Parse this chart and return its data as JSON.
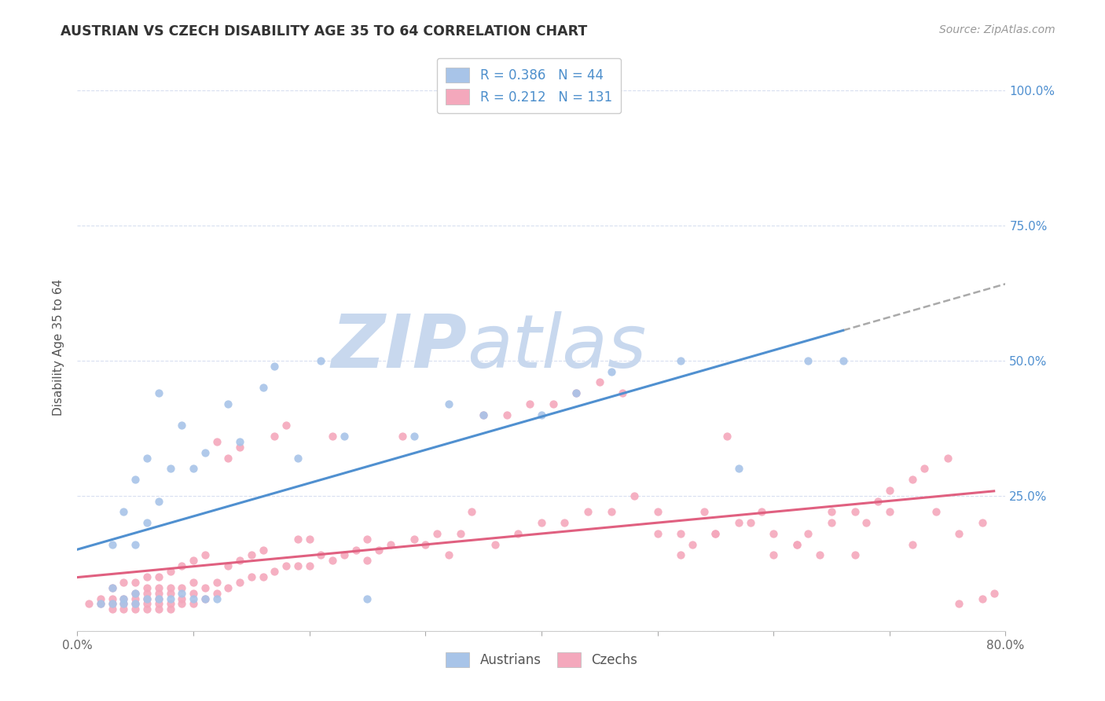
{
  "title": "AUSTRIAN VS CZECH DISABILITY AGE 35 TO 64 CORRELATION CHART",
  "source": "Source: ZipAtlas.com",
  "ylabel": "Disability Age 35 to 64",
  "xlim": [
    0.0,
    0.8
  ],
  "ylim": [
    0.0,
    1.05
  ],
  "xticks": [
    0.0,
    0.1,
    0.2,
    0.3,
    0.4,
    0.5,
    0.6,
    0.7,
    0.8
  ],
  "xticklabels": [
    "0.0%",
    "",
    "",
    "",
    "",
    "",
    "",
    "",
    "80.0%"
  ],
  "yticks": [
    0.0,
    0.25,
    0.5,
    0.75,
    1.0
  ],
  "yticklabels": [
    "",
    "25.0%",
    "50.0%",
    "75.0%",
    "100.0%"
  ],
  "austrians_R": 0.386,
  "austrians_N": 44,
  "czechs_R": 0.212,
  "czechs_N": 131,
  "austrians_color": "#a8c4e8",
  "czechs_color": "#f4a8bc",
  "austrians_line_color": "#5090d0",
  "czechs_line_color": "#e06080",
  "trend_dashed_color": "#aaaaaa",
  "background_color": "#ffffff",
  "grid_color": "#d8dff0",
  "austrians_x": [
    0.02,
    0.03,
    0.03,
    0.03,
    0.04,
    0.04,
    0.04,
    0.05,
    0.05,
    0.05,
    0.05,
    0.06,
    0.06,
    0.06,
    0.07,
    0.07,
    0.07,
    0.08,
    0.08,
    0.09,
    0.09,
    0.1,
    0.1,
    0.11,
    0.11,
    0.12,
    0.13,
    0.14,
    0.16,
    0.17,
    0.19,
    0.21,
    0.23,
    0.25,
    0.29,
    0.32,
    0.35,
    0.4,
    0.43,
    0.46,
    0.52,
    0.57,
    0.63,
    0.66
  ],
  "austrians_y": [
    0.05,
    0.05,
    0.08,
    0.16,
    0.05,
    0.06,
    0.22,
    0.05,
    0.07,
    0.16,
    0.28,
    0.06,
    0.2,
    0.32,
    0.06,
    0.24,
    0.44,
    0.06,
    0.3,
    0.07,
    0.38,
    0.06,
    0.3,
    0.06,
    0.33,
    0.06,
    0.42,
    0.35,
    0.45,
    0.49,
    0.32,
    0.5,
    0.36,
    0.06,
    0.36,
    0.42,
    0.4,
    0.4,
    0.44,
    0.48,
    0.5,
    0.3,
    0.5,
    0.5
  ],
  "czechs_x": [
    0.01,
    0.02,
    0.02,
    0.03,
    0.03,
    0.03,
    0.03,
    0.04,
    0.04,
    0.04,
    0.04,
    0.05,
    0.05,
    0.05,
    0.05,
    0.05,
    0.06,
    0.06,
    0.06,
    0.06,
    0.06,
    0.06,
    0.07,
    0.07,
    0.07,
    0.07,
    0.07,
    0.07,
    0.08,
    0.08,
    0.08,
    0.08,
    0.08,
    0.09,
    0.09,
    0.09,
    0.09,
    0.1,
    0.1,
    0.1,
    0.1,
    0.11,
    0.11,
    0.11,
    0.12,
    0.12,
    0.12,
    0.13,
    0.13,
    0.13,
    0.14,
    0.14,
    0.14,
    0.15,
    0.15,
    0.16,
    0.16,
    0.17,
    0.17,
    0.18,
    0.18,
    0.19,
    0.19,
    0.2,
    0.2,
    0.21,
    0.22,
    0.22,
    0.23,
    0.24,
    0.25,
    0.25,
    0.26,
    0.27,
    0.28,
    0.29,
    0.3,
    0.31,
    0.32,
    0.33,
    0.34,
    0.35,
    0.36,
    0.37,
    0.38,
    0.39,
    0.4,
    0.41,
    0.42,
    0.43,
    0.44,
    0.45,
    0.46,
    0.47,
    0.48,
    0.5,
    0.52,
    0.54,
    0.55,
    0.56,
    0.58,
    0.6,
    0.62,
    0.64,
    0.65,
    0.67,
    0.68,
    0.7,
    0.72,
    0.74,
    0.76,
    0.78,
    0.5,
    0.52,
    0.53,
    0.55,
    0.57,
    0.59,
    0.6,
    0.62,
    0.63,
    0.65,
    0.67,
    0.69,
    0.7,
    0.72,
    0.73,
    0.75,
    0.76,
    0.78,
    0.79
  ],
  "czechs_y": [
    0.05,
    0.05,
    0.06,
    0.04,
    0.05,
    0.06,
    0.08,
    0.04,
    0.05,
    0.06,
    0.09,
    0.04,
    0.05,
    0.06,
    0.07,
    0.09,
    0.04,
    0.05,
    0.06,
    0.07,
    0.08,
    0.1,
    0.04,
    0.05,
    0.06,
    0.07,
    0.08,
    0.1,
    0.04,
    0.05,
    0.07,
    0.08,
    0.11,
    0.05,
    0.06,
    0.08,
    0.12,
    0.05,
    0.07,
    0.09,
    0.13,
    0.06,
    0.08,
    0.14,
    0.07,
    0.09,
    0.35,
    0.08,
    0.12,
    0.32,
    0.09,
    0.13,
    0.34,
    0.1,
    0.14,
    0.1,
    0.15,
    0.11,
    0.36,
    0.12,
    0.38,
    0.12,
    0.17,
    0.12,
    0.17,
    0.14,
    0.13,
    0.36,
    0.14,
    0.15,
    0.13,
    0.17,
    0.15,
    0.16,
    0.36,
    0.17,
    0.16,
    0.18,
    0.14,
    0.18,
    0.22,
    0.4,
    0.16,
    0.4,
    0.18,
    0.42,
    0.2,
    0.42,
    0.2,
    0.44,
    0.22,
    0.46,
    0.22,
    0.44,
    0.25,
    0.22,
    0.18,
    0.22,
    0.18,
    0.36,
    0.2,
    0.18,
    0.16,
    0.14,
    0.22,
    0.14,
    0.2,
    0.22,
    0.16,
    0.22,
    0.18,
    0.2,
    0.18,
    0.14,
    0.16,
    0.18,
    0.2,
    0.22,
    0.14,
    0.16,
    0.18,
    0.2,
    0.22,
    0.24,
    0.26,
    0.28,
    0.3,
    0.32,
    0.05,
    0.06,
    0.07
  ]
}
